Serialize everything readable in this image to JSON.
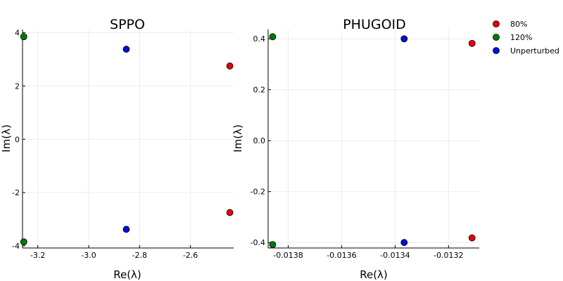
{
  "legend": [
    {
      "label": "80%",
      "color": "#e6000b"
    },
    {
      "label": "120%",
      "color": "#007a00"
    },
    {
      "label": "Unperturbed",
      "color": "#0010d8"
    }
  ],
  "chart_data": [
    {
      "type": "scatter",
      "title": "SPPO",
      "xlabel": "Re(λ)",
      "ylabel": "Im(λ)",
      "xlim": [
        -3.26,
        -2.43
      ],
      "ylim": [
        -4.08,
        4.12
      ],
      "xticks": [
        -3.2,
        -3.0,
        -2.8,
        -2.6
      ],
      "xtick_labels": [
        "-3.2",
        "-3.0",
        "-2.8",
        "-2.6"
      ],
      "yticks": [
        -4,
        -2,
        0,
        2,
        4
      ],
      "ytick_labels": [
        "-4",
        "-2",
        "0",
        "2",
        "4"
      ],
      "grid": true,
      "series": [
        {
          "name": "80%",
          "points": [
            [
              -2.445,
              2.75
            ],
            [
              -2.445,
              -2.75
            ]
          ]
        },
        {
          "name": "120%",
          "points": [
            [
              -3.255,
              3.85
            ],
            [
              -3.255,
              -3.85
            ]
          ]
        },
        {
          "name": "Unperturbed",
          "points": [
            [
              -2.852,
              3.38
            ],
            [
              -2.852,
              -3.38
            ]
          ]
        }
      ]
    },
    {
      "type": "scatter",
      "title": "PHUGOID",
      "xlabel": "Re(λ)",
      "ylabel": "Im(λ)",
      "xlim": [
        -0.013875,
        -0.013085
      ],
      "ylim": [
        -0.4215,
        0.4365
      ],
      "xticks": [
        -0.0138,
        -0.0136,
        -0.0134,
        -0.0132
      ],
      "xtick_labels": [
        "-0.0138",
        "-0.0136",
        "-0.0134",
        "-0.0132"
      ],
      "yticks": [
        -0.4,
        -0.2,
        0.0,
        0.2,
        0.4
      ],
      "ytick_labels": [
        "-0.4",
        "-0.2",
        "0.0",
        "0.2",
        "0.4"
      ],
      "grid": true,
      "series": [
        {
          "name": "80%",
          "points": [
            [
              -0.013112,
              0.382
            ],
            [
              -0.013112,
              -0.382
            ]
          ]
        },
        {
          "name": "120%",
          "points": [
            [
              -0.013858,
              0.408
            ],
            [
              -0.013858,
              -0.408
            ]
          ]
        },
        {
          "name": "Unperturbed",
          "points": [
            [
              -0.013366,
              0.4
            ],
            [
              -0.013366,
              -0.4
            ]
          ]
        }
      ]
    }
  ]
}
